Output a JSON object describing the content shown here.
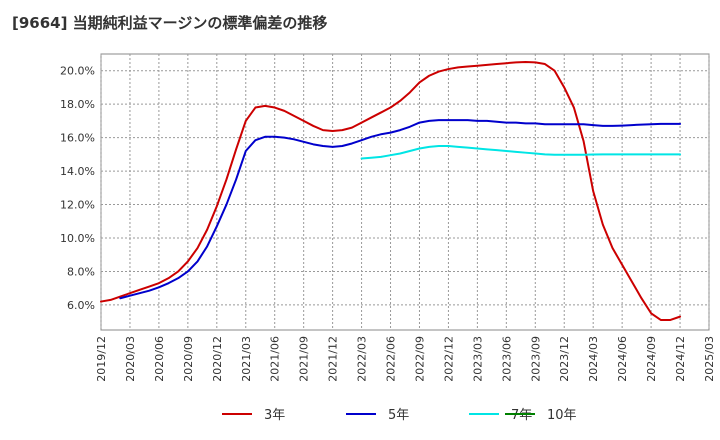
{
  "chart_data": {
    "type": "line",
    "title": "[9664]  当期純利益マージンの標準偏差の推移",
    "xlabel": "",
    "ylabel": "",
    "ylim": [
      4.5,
      21.0
    ],
    "grid": true,
    "legend_position": "bottom",
    "y_ticks": [
      "6.0%",
      "8.0%",
      "10.0%",
      "12.0%",
      "14.0%",
      "16.0%",
      "18.0%",
      "20.0%"
    ],
    "y_tick_values": [
      6,
      8,
      10,
      12,
      14,
      16,
      18,
      20
    ],
    "x_ticks": [
      "2019/12",
      "2020/03",
      "2020/06",
      "2020/09",
      "2020/12",
      "2021/03",
      "2021/06",
      "2021/09",
      "2021/12",
      "2022/03",
      "2022/06",
      "2022/09",
      "2022/12",
      "2023/03",
      "2023/06",
      "2023/09",
      "2023/12",
      "2024/03",
      "2024/06",
      "2024/09",
      "2024/12",
      "2025/03"
    ],
    "x_tick_index": [
      0,
      3,
      6,
      9,
      12,
      15,
      18,
      21,
      24,
      27,
      30,
      33,
      36,
      39,
      42,
      45,
      48,
      51,
      54,
      57,
      60,
      63
    ],
    "series": [
      {
        "name": "3年",
        "color": "#cc0000",
        "start_index": 0,
        "values": [
          6.2,
          6.3,
          6.5,
          6.7,
          6.9,
          7.1,
          7.3,
          7.6,
          8.0,
          8.6,
          9.4,
          10.5,
          11.9,
          13.5,
          15.3,
          17.0,
          17.8,
          17.9,
          17.8,
          17.6,
          17.3,
          17.0,
          16.7,
          16.45,
          16.4,
          16.45,
          16.6,
          16.9,
          17.2,
          17.5,
          17.8,
          18.2,
          18.7,
          19.3,
          19.7,
          19.95,
          20.1,
          20.2,
          20.25,
          20.3,
          20.35,
          20.4,
          20.45,
          20.5,
          20.52,
          20.5,
          20.4,
          20.0,
          19.0,
          17.8,
          15.8,
          12.8,
          10.8,
          9.4,
          8.4,
          7.4,
          6.4,
          5.5,
          5.1,
          5.1,
          5.3
        ]
      },
      {
        "name": "5年",
        "color": "#0000cc",
        "start_index": 2,
        "values": [
          6.4,
          6.55,
          6.7,
          6.85,
          7.05,
          7.3,
          7.6,
          8.0,
          8.6,
          9.5,
          10.7,
          12.0,
          13.5,
          15.2,
          15.85,
          16.05,
          16.05,
          16.0,
          15.9,
          15.75,
          15.6,
          15.5,
          15.45,
          15.5,
          15.65,
          15.85,
          16.05,
          16.2,
          16.3,
          16.45,
          16.65,
          16.9,
          17.0,
          17.05,
          17.05,
          17.05,
          17.05,
          17.0,
          17.0,
          16.95,
          16.9,
          16.9,
          16.85,
          16.85,
          16.8,
          16.8,
          16.8,
          16.8,
          16.8,
          16.75,
          16.7,
          16.7,
          16.72,
          16.75,
          16.78,
          16.8,
          16.82,
          16.82,
          16.82
        ]
      },
      {
        "name": "7年",
        "color": "#00e5e5",
        "start_index": 27,
        "values": [
          14.75,
          14.8,
          14.85,
          14.95,
          15.05,
          15.2,
          15.35,
          15.45,
          15.5,
          15.5,
          15.45,
          15.4,
          15.35,
          15.3,
          15.25,
          15.2,
          15.15,
          15.1,
          15.05,
          15.0,
          14.98,
          14.98,
          14.98,
          14.98,
          14.99,
          15.0,
          15.0,
          15.0,
          15.0,
          15.0,
          15.0,
          15.0,
          15.0,
          15.0
        ]
      },
      {
        "name": "10年",
        "color": "#008000",
        "start_index": 0,
        "values": []
      }
    ]
  }
}
